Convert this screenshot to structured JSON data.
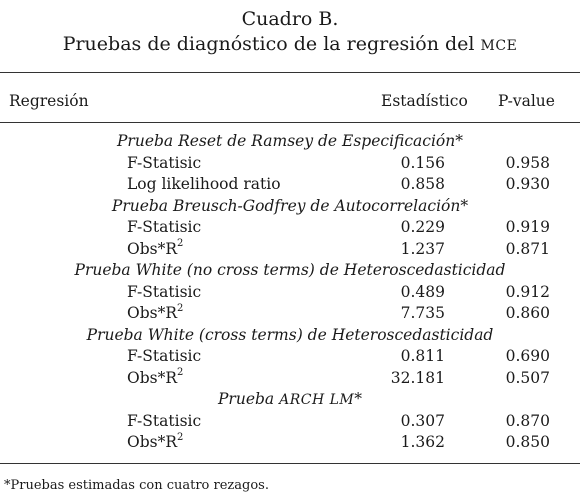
{
  "title": {
    "line1": "Cuadro B.",
    "line2_prefix": "Pruebas de diagnóstico de la regresión del ",
    "line2_abbrev": "mce"
  },
  "header": {
    "regression": "Regresión",
    "statistic": "Estadístico",
    "pvalue": "P-value"
  },
  "sections": [
    {
      "title": "Prueba Reset de Ramsey de Especificación*",
      "rows": [
        {
          "label": "F-Statisic",
          "stat": "0.156",
          "p": "0.958"
        },
        {
          "label": "Log likelihood ratio",
          "stat": "0.858",
          "p": "0.930"
        }
      ]
    },
    {
      "title": "Prueba Breusch-Godfrey de Autocorrelación*",
      "rows": [
        {
          "label": "F-Statisic",
          "stat": "0.229",
          "p": "0.919"
        },
        {
          "label": "Obs*R",
          "sup": "2",
          "stat": "1.237",
          "p": "0.871"
        }
      ]
    },
    {
      "title": "Prueba White (no cross terms) de Heteroscedasticidad",
      "rows": [
        {
          "label": "F-Statisic",
          "stat": "0.489",
          "p": "0.912"
        },
        {
          "label": "Obs*R",
          "sup": "2",
          "stat": "7.735",
          "p": "0.860"
        }
      ]
    },
    {
      "title": "Prueba White (cross terms) de Heteroscedasticidad",
      "rows": [
        {
          "label": "F-Statisic",
          "stat": "0.811",
          "p": "0.690"
        },
        {
          "label": "Obs*R",
          "sup": "2",
          "stat": "32.181",
          "p": "0.507"
        }
      ]
    },
    {
      "title_prefix": "Prueba ",
      "title_abbrev": "arch lm",
      "title_suffix": "*",
      "rows": [
        {
          "label": "F-Statisic",
          "stat": "0.307",
          "p": "0.870"
        },
        {
          "label": "Obs*R",
          "sup": "2",
          "stat": "1.362",
          "p": "0.850"
        }
      ]
    }
  ],
  "footnote": "*Pruebas estimadas con cuatro rezagos."
}
